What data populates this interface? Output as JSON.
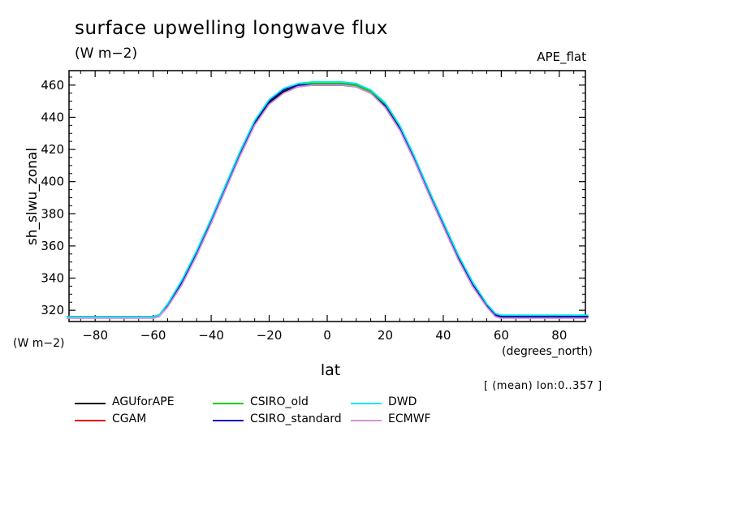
{
  "title": "surface upwelling longwave flux",
  "units": "(W m−2)",
  "experiment": "APE_flat",
  "y_units_corner": "(W m−2)",
  "x_units": "(degrees_north)",
  "averaging_note": "[ (mean) lon:0..357 ]",
  "chart_data": {
    "type": "line",
    "xlabel": "lat",
    "ylabel": "sh_slwu_zonal",
    "xlim": [
      -89,
      89
    ],
    "ylim": [
      313,
      469
    ],
    "xticks": [
      -80,
      -60,
      -40,
      -20,
      0,
      20,
      40,
      60,
      80
    ],
    "yticks": [
      320,
      340,
      360,
      380,
      400,
      420,
      440,
      460
    ],
    "xtick_labels": [
      "−80",
      "−60",
      "−40",
      "−20",
      "0",
      "20",
      "40",
      "60",
      "80"
    ],
    "ytick_labels": [
      "320",
      "340",
      "360",
      "380",
      "400",
      "420",
      "440",
      "460"
    ],
    "x": [
      -90,
      -80,
      -70,
      -60,
      -58,
      -55,
      -50,
      -45,
      -40,
      -35,
      -30,
      -25,
      -20,
      -15,
      -10,
      -5,
      0,
      5,
      10,
      15,
      20,
      25,
      30,
      35,
      40,
      45,
      50,
      55,
      58,
      60,
      70,
      80,
      90
    ],
    "series": [
      {
        "name": "AGUforAPE",
        "color": "#000000",
        "values": [
          316,
          316,
          316,
          316,
          317,
          323,
          337,
          355,
          375,
          396,
          417,
          436,
          449,
          456,
          459,
          460,
          460,
          460,
          459,
          455,
          447,
          433,
          414,
          393,
          373,
          353,
          336,
          323,
          317,
          316,
          316,
          316,
          316
        ]
      },
      {
        "name": "CGAM",
        "color": "#e00000",
        "values": [
          316,
          316,
          316,
          316,
          317,
          323,
          338,
          356,
          376,
          397,
          418,
          437,
          450,
          457,
          460,
          461,
          461,
          461,
          460,
          456,
          448,
          434,
          415,
          394,
          374,
          354,
          337,
          323,
          317,
          316,
          316,
          316,
          316
        ]
      },
      {
        "name": "CSIRO_old",
        "color": "#00d000",
        "values": [
          316,
          316,
          316,
          316,
          317,
          323,
          338,
          356,
          376,
          397,
          418,
          437,
          450,
          457,
          460,
          461,
          461,
          461,
          460,
          456,
          448,
          434,
          415,
          394,
          374,
          354,
          337,
          323,
          317,
          316,
          316,
          316,
          316
        ]
      },
      {
        "name": "CSIRO_standard",
        "color": "#0000c0",
        "values": [
          316,
          316,
          316,
          316,
          317,
          323,
          338,
          356,
          376,
          397,
          418,
          437,
          450,
          457,
          460,
          460,
          460,
          460,
          459,
          455,
          447,
          433,
          414,
          393,
          373,
          353,
          336,
          323,
          317,
          316,
          316,
          316,
          316
        ]
      },
      {
        "name": "DWD",
        "color": "#00e8f0",
        "values": [
          316,
          316,
          316,
          316,
          317,
          324,
          339,
          357,
          377,
          398,
          419,
          438,
          451,
          458,
          461,
          462,
          462,
          462,
          461,
          457,
          449,
          435,
          416,
          395,
          375,
          355,
          338,
          324,
          318,
          317,
          317,
          317,
          317
        ]
      },
      {
        "name": "ECMWF",
        "color": "#d890d8",
        "values": [
          315,
          315,
          315,
          315,
          316,
          322,
          336,
          354,
          374,
          395,
          416,
          435,
          448,
          455,
          459,
          460,
          460,
          460,
          459,
          455,
          446,
          432,
          413,
          392,
          372,
          352,
          335,
          322,
          316,
          315,
          315,
          315,
          315
        ]
      }
    ]
  }
}
